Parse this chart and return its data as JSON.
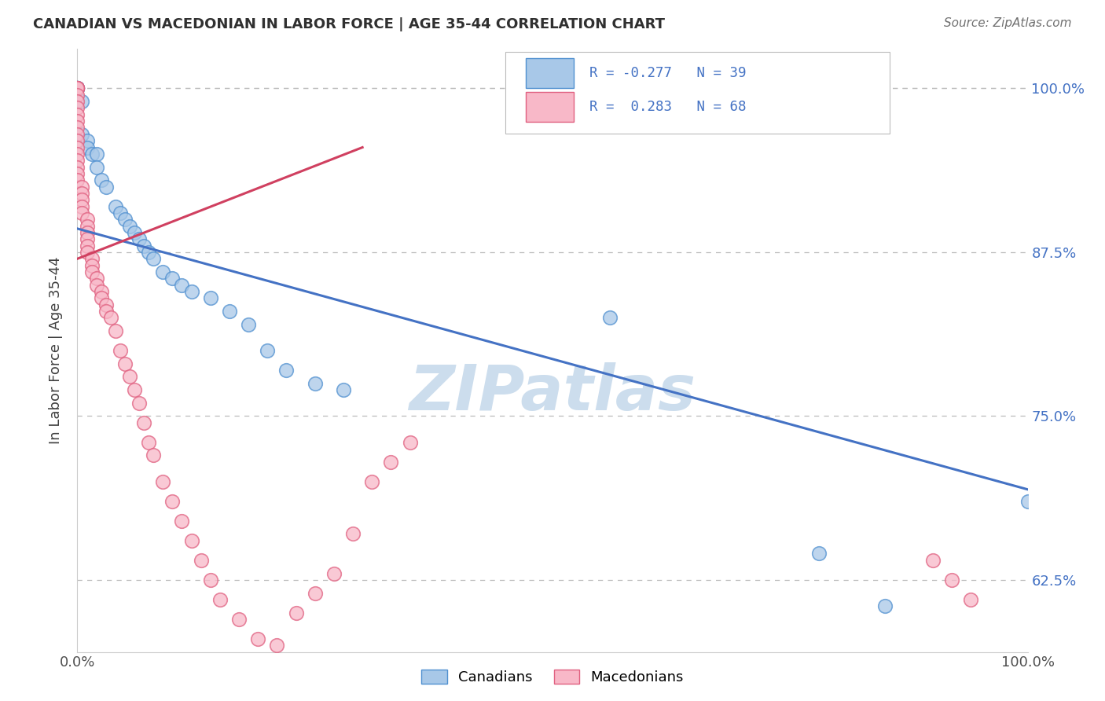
{
  "title": "CANADIAN VS MACEDONIAN IN LABOR FORCE | AGE 35-44 CORRELATION CHART",
  "source_text": "Source: ZipAtlas.com",
  "ylabel": "In Labor Force | Age 35-44",
  "canadian_color": "#a8c8e8",
  "macedonian_color": "#f8b8c8",
  "canadian_edge_color": "#5090d0",
  "macedonian_edge_color": "#e06080",
  "canadian_line_color": "#4472c4",
  "macedonian_line_color": "#d04060",
  "background_color": "#ffffff",
  "grid_color": "#bbbbbb",
  "title_color": "#303030",
  "watermark_color": "#ccdded",
  "xlim": [
    0.0,
    1.0
  ],
  "ylim": [
    0.57,
    1.03
  ],
  "y_ticks": [
    0.625,
    0.75,
    0.875,
    1.0
  ],
  "y_tick_labels": [
    "62.5%",
    "75.0%",
    "87.5%",
    "100.0%"
  ],
  "x_ticks": [
    0.0,
    1.0
  ],
  "x_tick_labels": [
    "0.0%",
    "100.0%"
  ],
  "legend_r_can": "R = -0.277",
  "legend_n_can": "N = 39",
  "legend_r_mac": "R =  0.283",
  "legend_n_mac": "N = 68",
  "canadian_x": [
    0.0,
    0.0,
    0.0,
    0.0,
    0.0,
    0.0,
    0.005,
    0.005,
    0.01,
    0.01,
    0.015,
    0.02,
    0.02,
    0.025,
    0.03,
    0.04,
    0.045,
    0.05,
    0.055,
    0.06,
    0.065,
    0.07,
    0.075,
    0.08,
    0.09,
    0.1,
    0.11,
    0.12,
    0.14,
    0.16,
    0.18,
    0.2,
    0.22,
    0.25,
    0.28,
    0.56,
    0.78,
    0.85,
    1.0
  ],
  "canadian_y": [
    1.0,
    1.0,
    1.0,
    1.0,
    1.0,
    1.0,
    0.99,
    0.965,
    0.96,
    0.955,
    0.95,
    0.95,
    0.94,
    0.93,
    0.925,
    0.91,
    0.905,
    0.9,
    0.895,
    0.89,
    0.885,
    0.88,
    0.875,
    0.87,
    0.86,
    0.855,
    0.85,
    0.845,
    0.84,
    0.83,
    0.82,
    0.8,
    0.785,
    0.775,
    0.77,
    0.825,
    0.645,
    0.605,
    0.685
  ],
  "macedonian_x": [
    0.0,
    0.0,
    0.0,
    0.0,
    0.0,
    0.0,
    0.0,
    0.0,
    0.0,
    0.0,
    0.0,
    0.0,
    0.0,
    0.0,
    0.0,
    0.0,
    0.0,
    0.0,
    0.005,
    0.005,
    0.005,
    0.005,
    0.005,
    0.01,
    0.01,
    0.01,
    0.01,
    0.01,
    0.01,
    0.015,
    0.015,
    0.015,
    0.02,
    0.02,
    0.025,
    0.025,
    0.03,
    0.03,
    0.035,
    0.04,
    0.045,
    0.05,
    0.055,
    0.06,
    0.065,
    0.07,
    0.075,
    0.08,
    0.09,
    0.1,
    0.11,
    0.12,
    0.13,
    0.14,
    0.15,
    0.17,
    0.19,
    0.21,
    0.23,
    0.25,
    0.27,
    0.29,
    0.31,
    0.33,
    0.35,
    0.9,
    0.92,
    0.94
  ],
  "macedonian_y": [
    1.0,
    1.0,
    1.0,
    1.0,
    0.995,
    0.99,
    0.985,
    0.98,
    0.975,
    0.97,
    0.965,
    0.96,
    0.955,
    0.95,
    0.945,
    0.94,
    0.935,
    0.93,
    0.925,
    0.92,
    0.915,
    0.91,
    0.905,
    0.9,
    0.895,
    0.89,
    0.885,
    0.88,
    0.875,
    0.87,
    0.865,
    0.86,
    0.855,
    0.85,
    0.845,
    0.84,
    0.835,
    0.83,
    0.825,
    0.815,
    0.8,
    0.79,
    0.78,
    0.77,
    0.76,
    0.745,
    0.73,
    0.72,
    0.7,
    0.685,
    0.67,
    0.655,
    0.64,
    0.625,
    0.61,
    0.595,
    0.58,
    0.575,
    0.6,
    0.615,
    0.63,
    0.66,
    0.7,
    0.715,
    0.73,
    0.64,
    0.625,
    0.61
  ],
  "can_trend_x0": 0.0,
  "can_trend_y0": 0.893,
  "can_trend_x1": 1.0,
  "can_trend_y1": 0.694,
  "mac_trend_x0": 0.0,
  "mac_trend_y0": 0.87,
  "mac_trend_x1": 0.3,
  "mac_trend_y1": 0.955
}
